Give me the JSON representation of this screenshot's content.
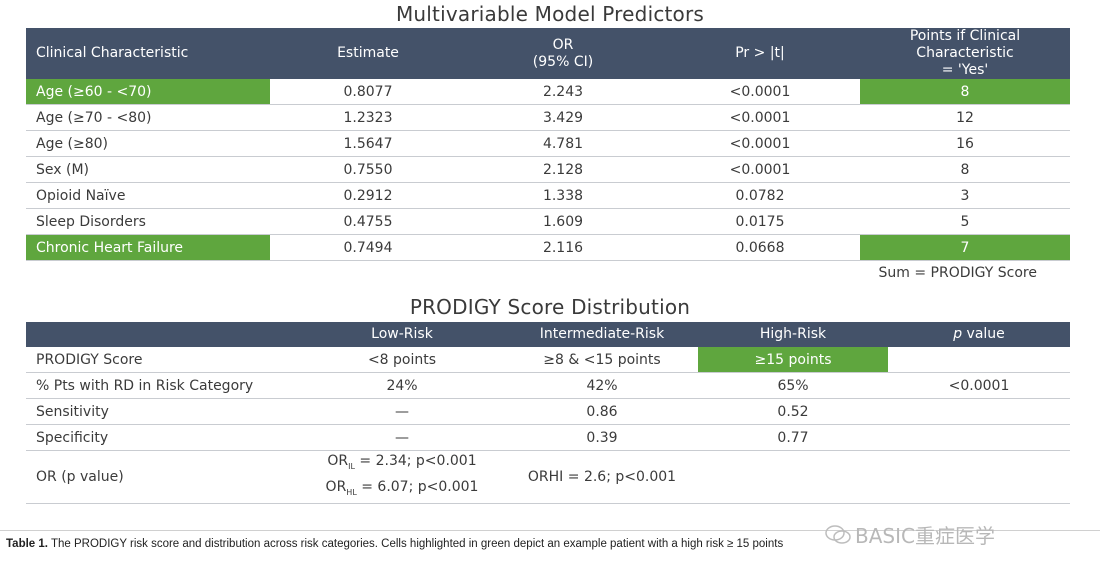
{
  "table1": {
    "title": "Multivariable Model Predictors",
    "headers": [
      "Clinical Characteristic",
      "Estimate",
      "OR",
      "(95% CI)",
      "Pr > |t|",
      "Points if Clinical Characteristic",
      "= 'Yes'"
    ],
    "rows": [
      {
        "characteristic": "Age (≥60 - <70)",
        "estimate": "0.8077",
        "or": "2.243",
        "p": "<0.0001",
        "points": "8"
      },
      {
        "characteristic": "Age (≥70 - <80)",
        "estimate": "1.2323",
        "or": "3.429",
        "p": "<0.0001",
        "points": "12"
      },
      {
        "characteristic": "Age (≥80)",
        "estimate": "1.5647",
        "or": "4.781",
        "p": "<0.0001",
        "points": "16"
      },
      {
        "characteristic": "Sex (M)",
        "estimate": "0.7550",
        "or": "2.128",
        "p": "<0.0001",
        "points": "8"
      },
      {
        "characteristic": "Opioid Naïve",
        "estimate": "0.2912",
        "or": "1.338",
        "p": "0.0782",
        "points": "3"
      },
      {
        "characteristic": "Sleep Disorders",
        "estimate": "0.4755",
        "or": "1.609",
        "p": "0.0175",
        "points": "5"
      },
      {
        "characteristic": "Chronic Heart Failure",
        "estimate": "0.7494",
        "or": "2.116",
        "p": "0.0668",
        "points": "7"
      }
    ],
    "sum_note": "Sum = PRODIGY Score"
  },
  "table2": {
    "title": "PRODIGY Score Distribution",
    "headers": [
      "",
      "Low-Risk",
      "Intermediate-Risk",
      "High-Risk",
      "p",
      "value"
    ],
    "rows": [
      {
        "label": "PRODIGY Score",
        "low": "<8 points",
        "intermediate": "≥8 & <15 points",
        "high": "≥15 points",
        "p": ""
      },
      {
        "label": "% Pts with RD in Risk Category",
        "low": "24%",
        "intermediate": "42%",
        "high": "65%",
        "p": "<0.0001"
      },
      {
        "label": "Sensitivity",
        "low": "—",
        "intermediate": "0.86",
        "high": "0.52",
        "p": ""
      },
      {
        "label": "Specificity",
        "low": "—",
        "intermediate": "0.39",
        "high": "0.77",
        "p": ""
      }
    ],
    "or_row": {
      "label": "OR (p value)",
      "line1_prefix": "OR",
      "line1_sub": "IL",
      "line1_rest": " = 2.34; p<0.001",
      "line2_prefix": "OR",
      "line2_sub": "HL",
      "line2_rest": " = 6.07; p<0.001",
      "intermediate": "ORHI = 2.6; p<0.001"
    }
  },
  "caption": {
    "label": "Table 1.",
    "text": " The PRODIGY risk score and distribution across risk categories. Cells highlighted in green depict an example patient with a high risk ≥ 15 points"
  },
  "watermark": "BASIC重症医学",
  "colors": {
    "header": "#445269",
    "highlight": "#5fa63e"
  }
}
